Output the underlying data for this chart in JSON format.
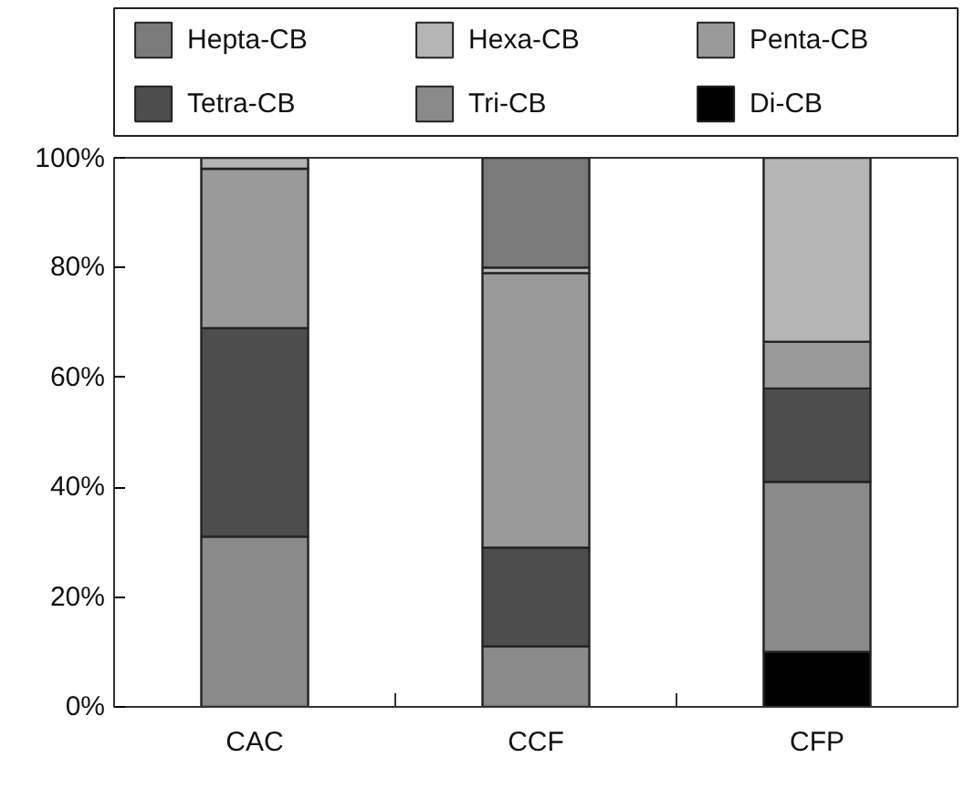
{
  "chart_data": {
    "type": "bar",
    "stacked": true,
    "categories": [
      "CAC",
      "CCF",
      "CFP"
    ],
    "series": [
      {
        "name": "Di-CB",
        "color": "#000000",
        "values": [
          null,
          null,
          10
        ]
      },
      {
        "name": "Tri-CB",
        "color": "#8a8a8a",
        "values": [
          31,
          11,
          31
        ]
      },
      {
        "name": "Tetra-CB",
        "color": "#4d4d4d",
        "values": [
          38,
          18,
          17
        ]
      },
      {
        "name": "Penta-CB",
        "color": "#9a9a9a",
        "values": [
          29,
          50,
          8.5
        ]
      },
      {
        "name": "Hexa-CB",
        "color": "#b5b5b5",
        "values": [
          2,
          1,
          33.5
        ]
      },
      {
        "name": "Hepta-CB",
        "color": "#7a7a7a",
        "values": [
          null,
          20,
          null
        ]
      }
    ],
    "ylim": [
      0,
      100
    ],
    "yticks": [
      {
        "value": 0,
        "label": "0%"
      },
      {
        "value": 20,
        "label": "20%"
      },
      {
        "value": 40,
        "label": "40%"
      },
      {
        "value": 60,
        "label": "60%"
      },
      {
        "value": 80,
        "label": "80%"
      },
      {
        "value": 100,
        "label": "100%"
      }
    ],
    "grid": false,
    "legend": "top"
  }
}
